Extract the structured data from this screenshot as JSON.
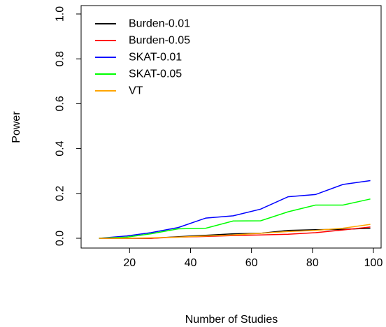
{
  "chart_data": {
    "type": "line",
    "xlabel": "Number of Studies",
    "ylabel": "Power",
    "xlim": [
      8,
      100
    ],
    "ylim": [
      0,
      1.0
    ],
    "x_ticks": [
      20,
      40,
      60,
      80,
      100
    ],
    "y_ticks": [
      0.0,
      0.2,
      0.4,
      0.6,
      0.8,
      1.0
    ],
    "x_tick_labels": [
      "20",
      "40",
      "60",
      "80",
      "100"
    ],
    "y_tick_labels": [
      "0.0",
      "0.2",
      "0.4",
      "0.6",
      "0.8",
      "1.0"
    ],
    "grid": false,
    "legend_position": "top-left",
    "x": [
      10,
      19,
      27,
      36,
      45,
      54,
      63,
      72,
      81,
      90,
      99
    ],
    "series": [
      {
        "name": "Burden-0.01",
        "color": "#000000",
        "values": [
          0.0,
          0.0,
          0.0,
          0.007,
          0.013,
          0.02,
          0.022,
          0.035,
          0.038,
          0.04,
          0.045
        ]
      },
      {
        "name": "Burden-0.05",
        "color": "#ff0000",
        "values": [
          0.0,
          0.0,
          0.0,
          0.005,
          0.008,
          0.012,
          0.015,
          0.018,
          0.025,
          0.037,
          0.05
        ]
      },
      {
        "name": "SKAT-0.01",
        "color": "#0000ff",
        "values": [
          0.0,
          0.01,
          0.025,
          0.048,
          0.09,
          0.1,
          0.13,
          0.185,
          0.195,
          0.24,
          0.257
        ]
      },
      {
        "name": "SKAT-0.05",
        "color": "#00ff00",
        "values": [
          0.0,
          0.005,
          0.02,
          0.042,
          0.045,
          0.077,
          0.078,
          0.118,
          0.148,
          0.148,
          0.175
        ]
      },
      {
        "name": "VT",
        "color": "#ffa500",
        "values": [
          0.0,
          0.0,
          0.002,
          0.005,
          0.01,
          0.015,
          0.022,
          0.03,
          0.035,
          0.045,
          0.062
        ]
      }
    ]
  }
}
